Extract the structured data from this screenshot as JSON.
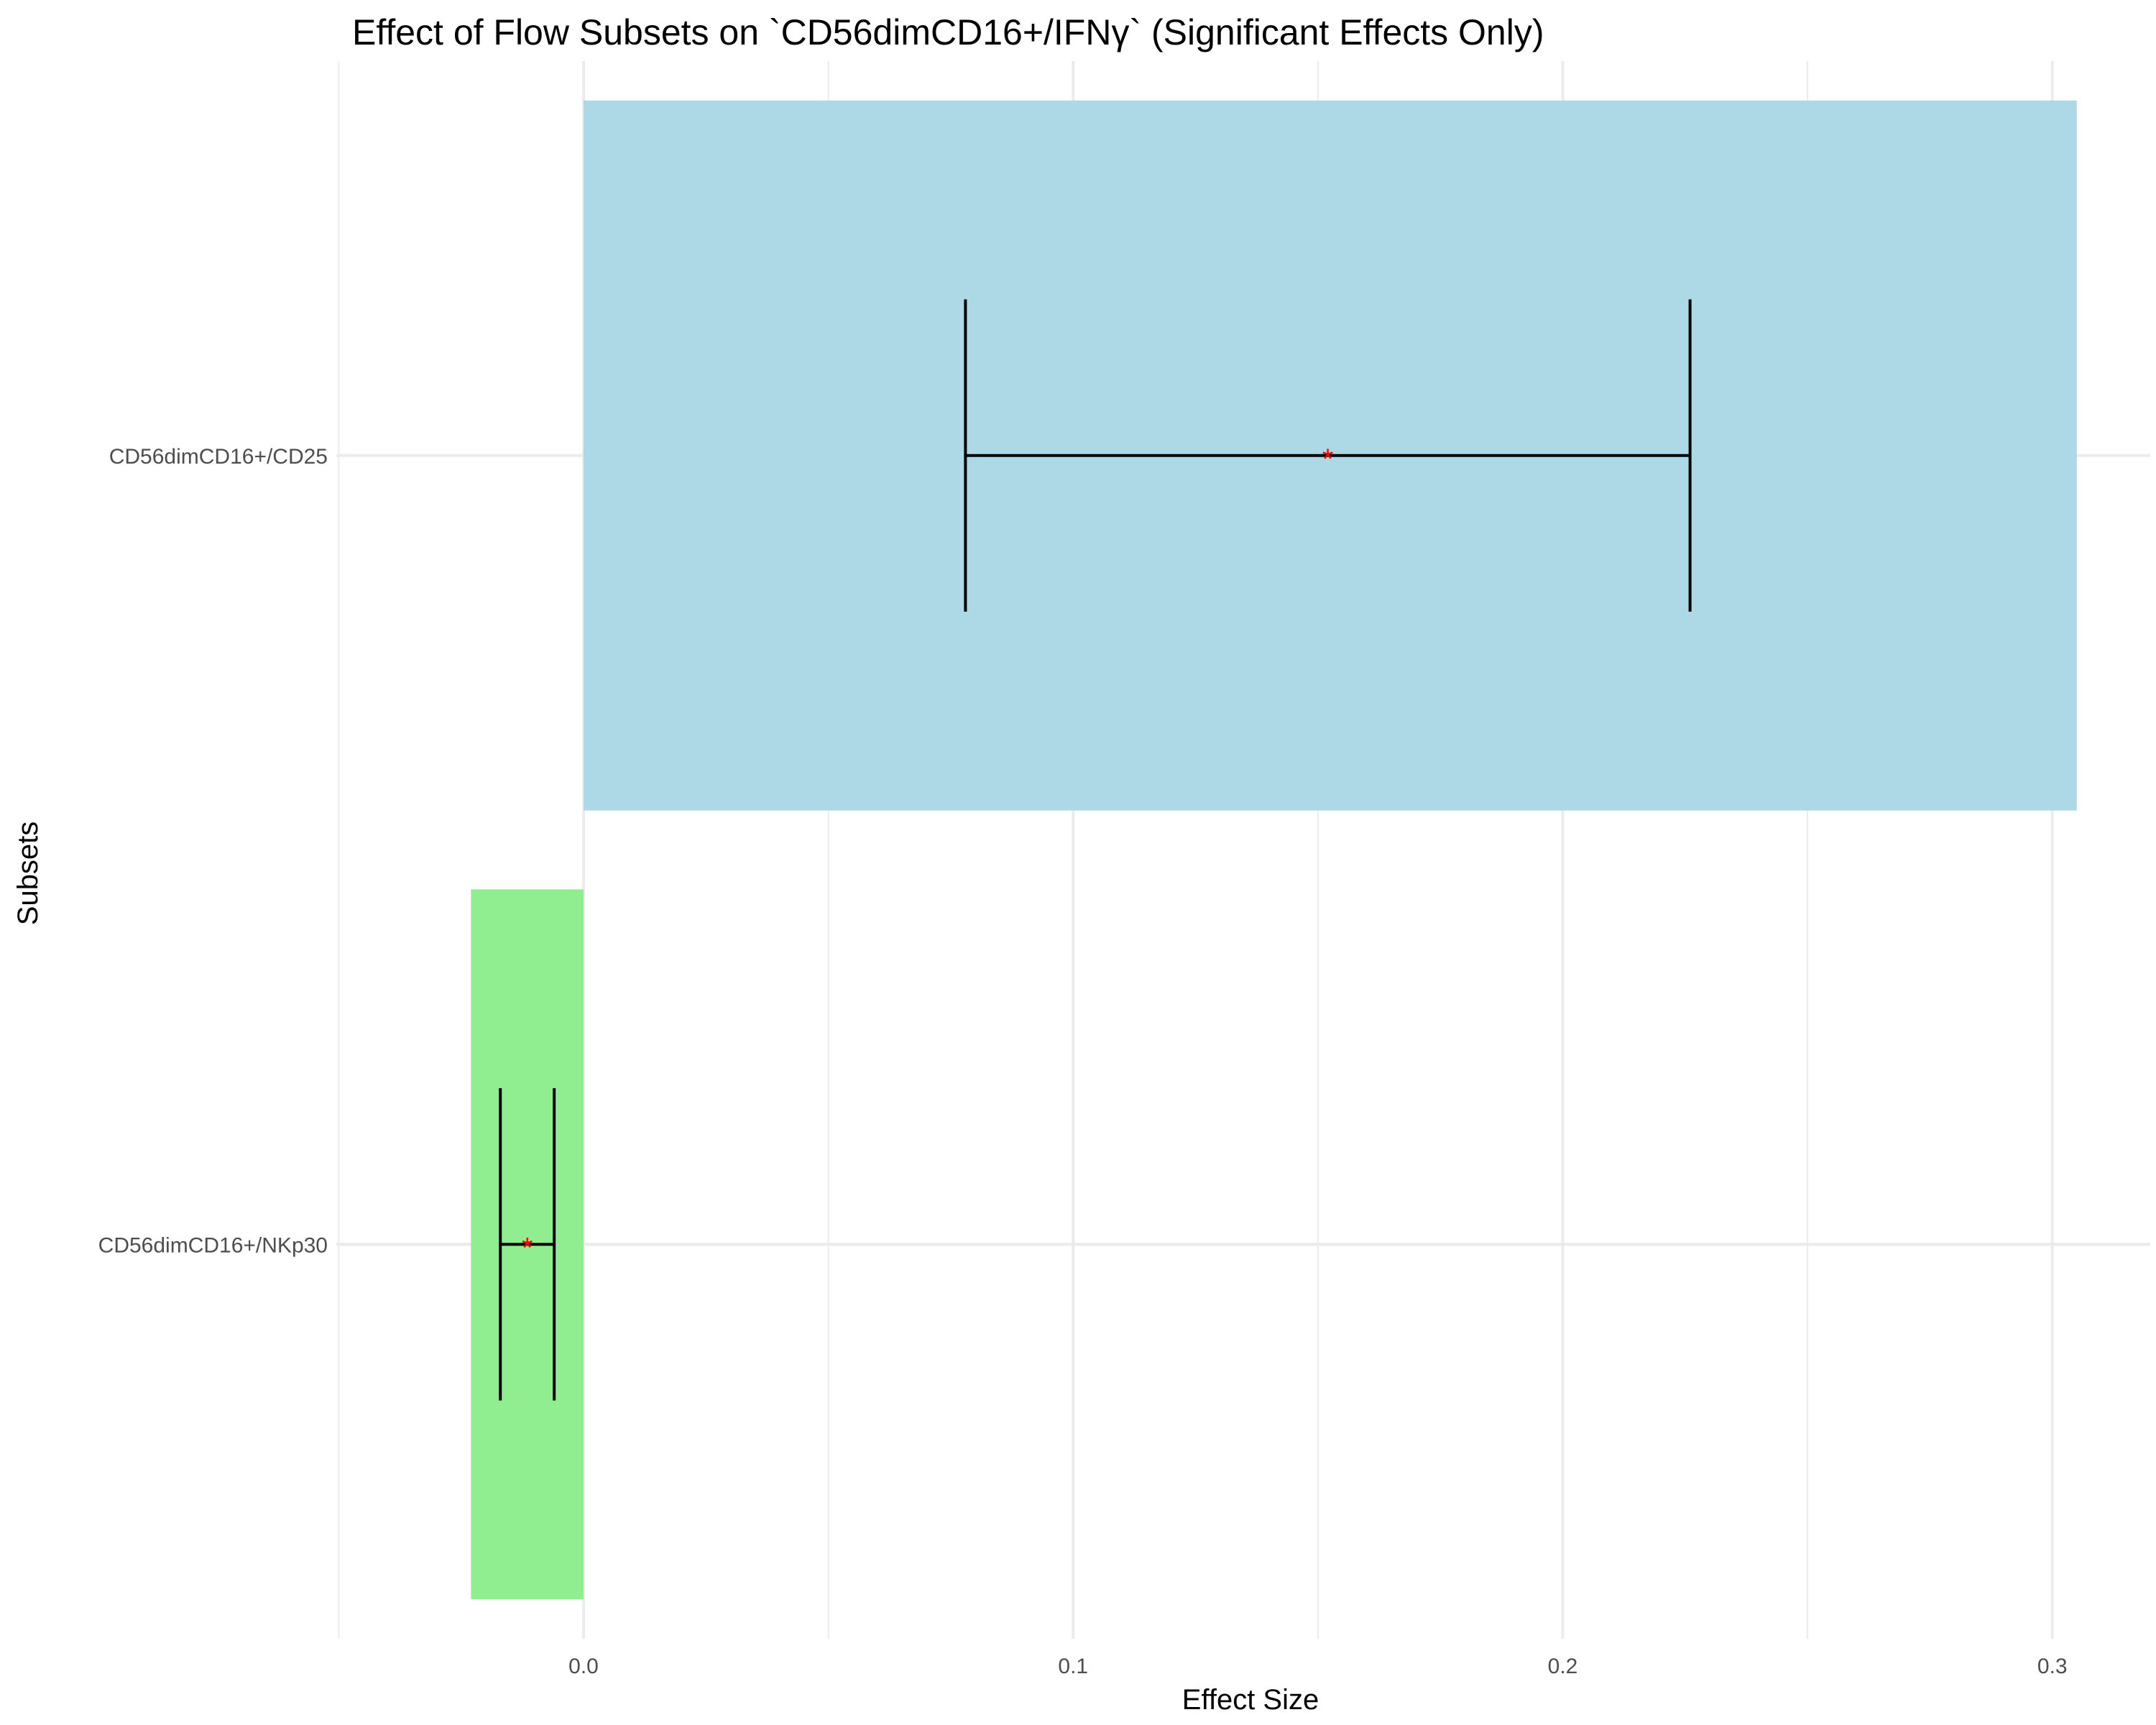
{
  "chart_data": {
    "type": "bar",
    "orientation": "horizontal",
    "title": "Effect of Flow Subsets on `CD56dimCD16+/IFNγ` (Significant Effects Only)",
    "xlabel": "Effect Size",
    "ylabel": "Subsets",
    "xlim": [
      -0.0505,
      0.32
    ],
    "x_ticks": [
      0.0,
      0.1,
      0.2,
      0.3
    ],
    "x_tick_labels": [
      "0.0",
      "0.1",
      "0.2",
      "0.3"
    ],
    "grid": true,
    "legend": "none",
    "categories": [
      "CD56dimCD16+/CD25",
      "CD56dimCD16+/NKp30"
    ],
    "values": [
      0.305,
      -0.023
    ],
    "ci_low": [
      0.078,
      -0.017
    ],
    "ci_high": [
      0.226,
      -0.006
    ],
    "point_estimate": [
      0.152,
      -0.0115
    ],
    "significance": [
      "*",
      "*"
    ],
    "bar_colors": [
      "#add8e6",
      "#90ee90"
    ],
    "marker_color": "#ff0000"
  }
}
